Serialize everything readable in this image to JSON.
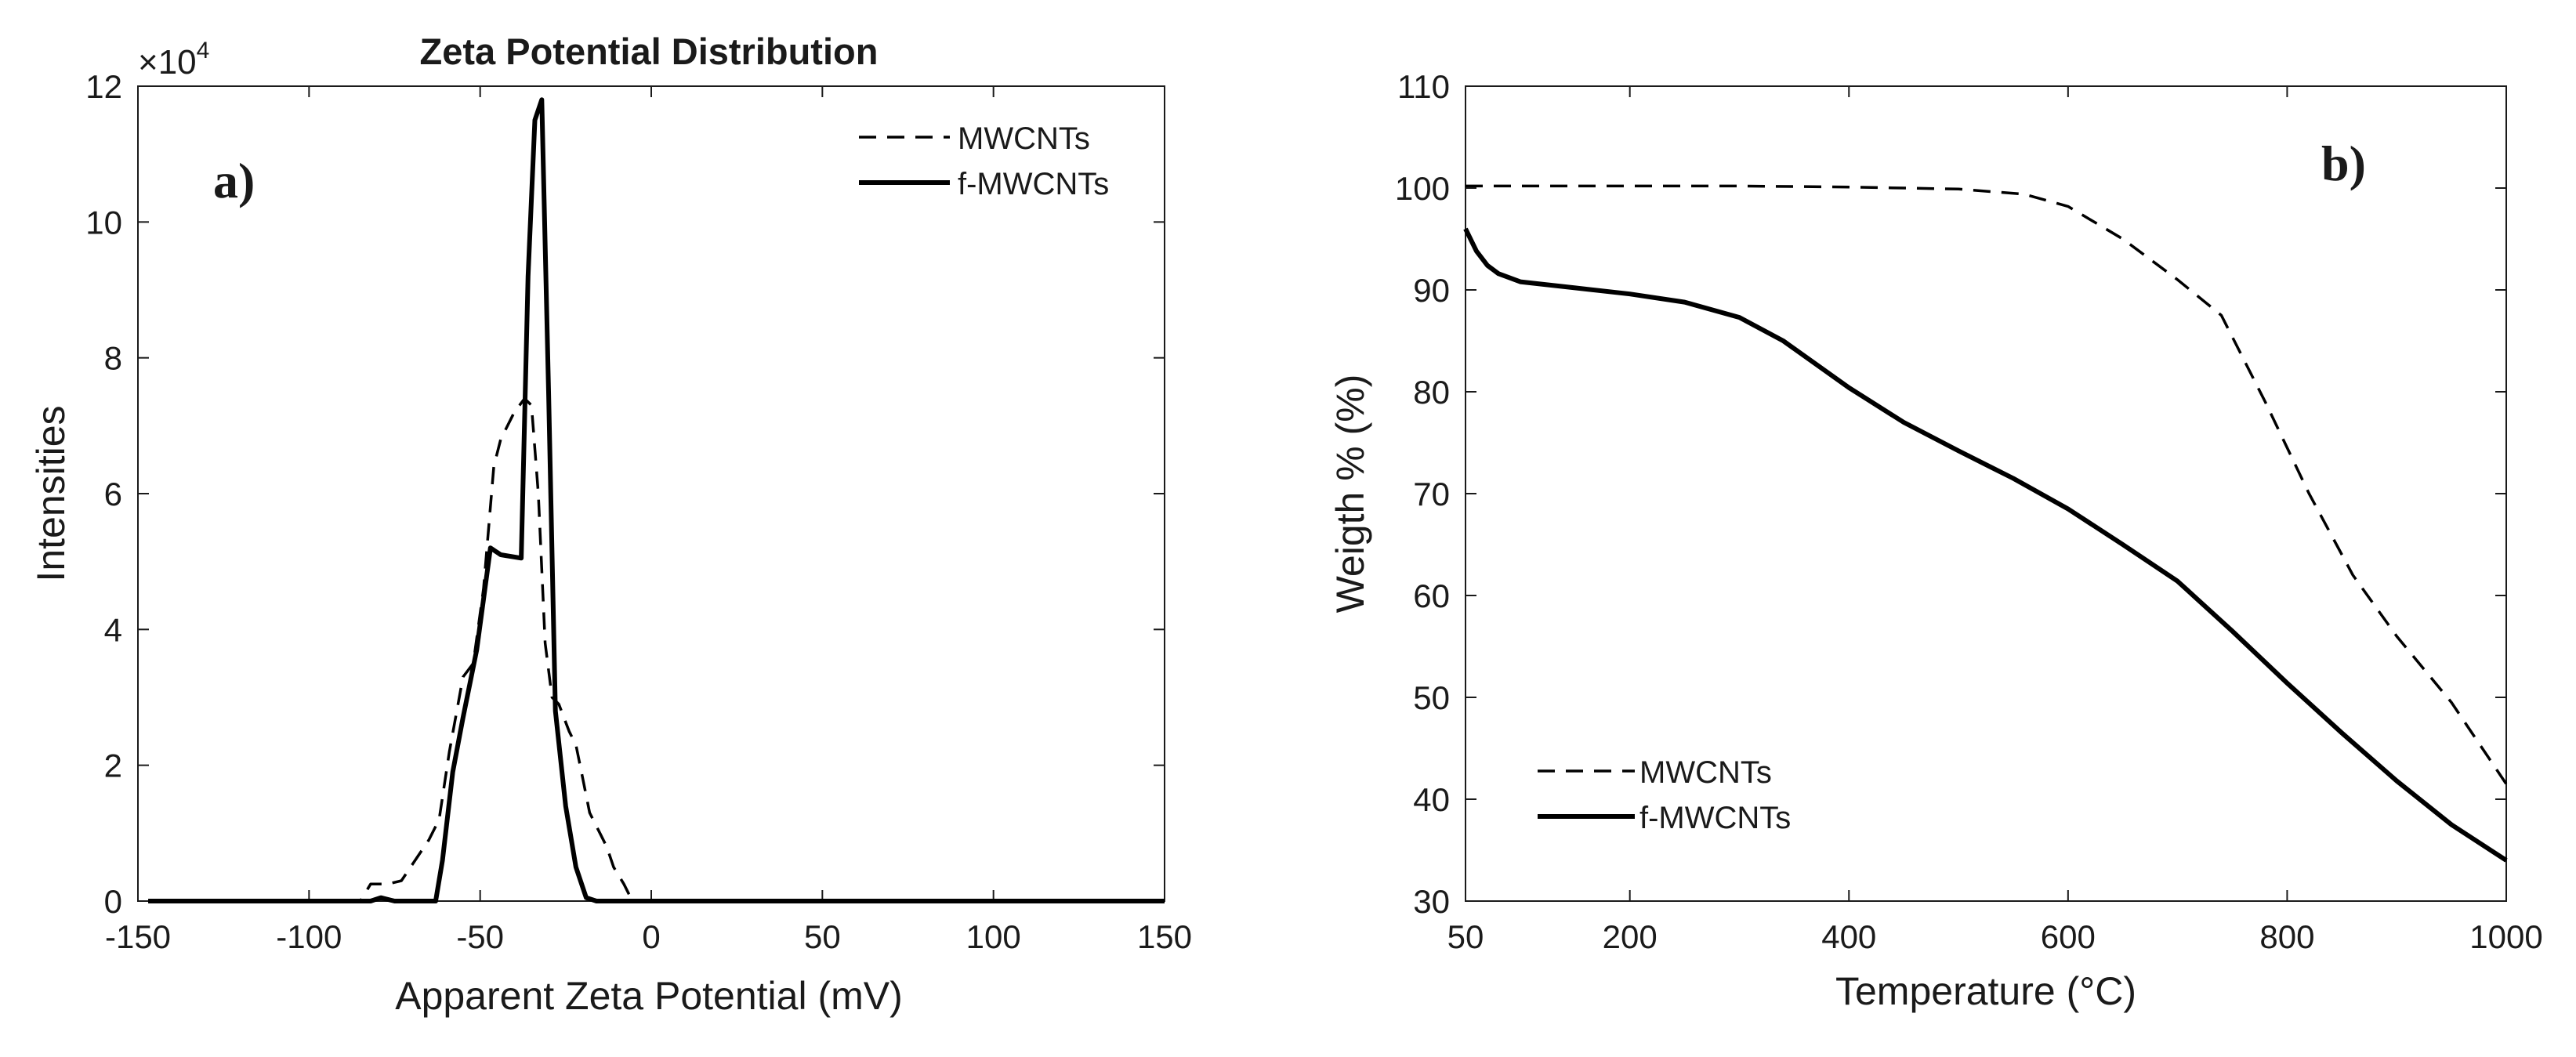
{
  "chart_data": [
    {
      "panel_label": "a)",
      "type": "line",
      "title": "Zeta Potential Distribution",
      "xlabel": "Apparent Zeta Potential (mV)",
      "ylabel": "Intensities",
      "y_multiplier": "×10",
      "y_exponent": "4",
      "xlim": [
        -150,
        150
      ],
      "ylim": [
        0,
        12
      ],
      "xticks": [
        "-150",
        "-100",
        "-50",
        "0",
        "50",
        "100",
        "150"
      ],
      "yticks": [
        "0",
        "2",
        "4",
        "6",
        "8",
        "10",
        "12"
      ],
      "legend_position": "top-right",
      "series": [
        {
          "name": "MWCNTs",
          "style": "dashed",
          "color": "#000000",
          "x": [
            -147,
            -85,
            -82,
            -80,
            -77,
            -73,
            -69,
            -65,
            -62,
            -59,
            -55,
            -52,
            -49,
            -46,
            -44,
            -40,
            -37,
            -35,
            -33,
            -31,
            -29,
            -27,
            -24,
            -22,
            -20,
            -18,
            -15,
            -13,
            -11,
            -8,
            -6,
            -4,
            -2,
            0,
            150
          ],
          "y": [
            0,
            0,
            0.25,
            0.25,
            0.25,
            0.3,
            0.6,
            0.9,
            1.2,
            2.2,
            3.3,
            3.5,
            4.6,
            6.4,
            6.8,
            7.2,
            7.4,
            7.3,
            6.0,
            3.8,
            3.0,
            2.9,
            2.5,
            2.3,
            1.8,
            1.3,
            1.0,
            0.8,
            0.5,
            0.25,
            0.05,
            0,
            0,
            0,
            0
          ]
        },
        {
          "name": "f-MWCNTs",
          "style": "solid",
          "color": "#000000",
          "x": [
            -147,
            -82,
            -79,
            -75,
            -63,
            -61,
            -58,
            -55,
            -51,
            -47,
            -44,
            -38,
            -36,
            -34,
            -32,
            -30,
            -28,
            -25,
            -22,
            -19,
            -16,
            -14,
            150
          ],
          "y": [
            0,
            0,
            0.05,
            0,
            0,
            0.6,
            1.9,
            2.7,
            3.7,
            5.2,
            5.1,
            5.05,
            9.2,
            11.5,
            11.8,
            7.5,
            2.8,
            1.4,
            0.5,
            0.05,
            0,
            0,
            0
          ]
        }
      ]
    },
    {
      "panel_label": "b)",
      "type": "line",
      "title": "",
      "xlabel": "Temperature (°C)",
      "ylabel": "Weigth % (%)",
      "xlim": [
        50,
        1000
      ],
      "ylim": [
        30,
        110
      ],
      "xticks": [
        "50",
        "200",
        "400",
        "600",
        "800",
        "1000"
      ],
      "yticks": [
        "30",
        "40",
        "50",
        "60",
        "70",
        "80",
        "90",
        "100",
        "110"
      ],
      "legend_position": "bottom-left",
      "series": [
        {
          "name": "MWCNTs",
          "style": "dashed",
          "color": "#000000",
          "x": [
            50,
            100,
            200,
            300,
            400,
            500,
            560,
            600,
            650,
            700,
            740,
            780,
            820,
            860,
            900,
            950,
            1000
          ],
          "y": [
            100.2,
            100.2,
            100.2,
            100.2,
            100.1,
            99.9,
            99.4,
            98.2,
            95,
            91,
            87.5,
            79,
            70,
            62,
            56,
            49.5,
            41.5
          ]
        },
        {
          "name": "f-MWCNTs",
          "style": "solid",
          "color": "#000000",
          "x": [
            50,
            60,
            70,
            80,
            100,
            150,
            200,
            250,
            300,
            340,
            400,
            450,
            500,
            550,
            600,
            650,
            700,
            750,
            800,
            850,
            900,
            950,
            1000
          ],
          "y": [
            96,
            93.8,
            92.4,
            91.6,
            90.8,
            90.2,
            89.6,
            88.8,
            87.3,
            85,
            80.4,
            77,
            74.2,
            71.5,
            68.5,
            65,
            61.4,
            56.5,
            51.4,
            46.5,
            41.8,
            37.5,
            34
          ]
        }
      ]
    }
  ]
}
